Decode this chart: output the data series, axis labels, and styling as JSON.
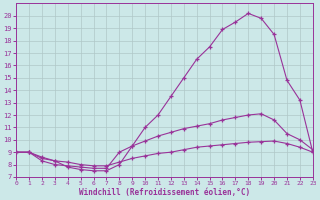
{
  "xlabel": "Windchill (Refroidissement éolien,°C)",
  "bg_color": "#cce8e8",
  "grid_color": "#b0c8c8",
  "line_color": "#993399",
  "ylim": [
    7,
    21
  ],
  "xlim": [
    0,
    23
  ],
  "yticks": [
    7,
    8,
    9,
    10,
    11,
    12,
    13,
    14,
    15,
    16,
    17,
    18,
    19,
    20
  ],
  "xticks": [
    0,
    1,
    2,
    3,
    4,
    5,
    6,
    7,
    8,
    9,
    10,
    11,
    12,
    13,
    14,
    15,
    16,
    17,
    18,
    19,
    20,
    21,
    22,
    23
  ],
  "line1_x": [
    0,
    1,
    2,
    3,
    4,
    5,
    6,
    7,
    8,
    9,
    10,
    11,
    12,
    13,
    14,
    15,
    16,
    17,
    18,
    19,
    20,
    21,
    22,
    23
  ],
  "line1_y": [
    9,
    9,
    8.5,
    8.3,
    7.8,
    7.6,
    7.5,
    7.5,
    8.0,
    9.5,
    11.0,
    12.0,
    13.5,
    15.0,
    16.5,
    17.5,
    18.9,
    19.5,
    20.2,
    19.8,
    18.5,
    14.8,
    13.2,
    9.0
  ],
  "line2_x": [
    0,
    1,
    2,
    3,
    4,
    5,
    6,
    7,
    8,
    9,
    10,
    11,
    12,
    13,
    14,
    15,
    16,
    17,
    18,
    19,
    20,
    21,
    22,
    23
  ],
  "line2_y": [
    9.0,
    9.0,
    8.3,
    8.0,
    7.9,
    7.8,
    7.7,
    7.7,
    9.0,
    9.5,
    9.9,
    10.3,
    10.6,
    10.9,
    11.1,
    11.3,
    11.6,
    11.8,
    12.0,
    12.1,
    11.6,
    10.5,
    10.0,
    9.2
  ],
  "line3_x": [
    0,
    1,
    2,
    3,
    4,
    5,
    6,
    7,
    8,
    9,
    10,
    11,
    12,
    13,
    14,
    15,
    16,
    17,
    18,
    19,
    20,
    21,
    22,
    23
  ],
  "line3_y": [
    9.0,
    9.0,
    8.6,
    8.3,
    8.2,
    8.0,
    7.9,
    7.9,
    8.2,
    8.5,
    8.7,
    8.9,
    9.0,
    9.2,
    9.4,
    9.5,
    9.6,
    9.7,
    9.8,
    9.85,
    9.9,
    9.7,
    9.4,
    9.0
  ]
}
